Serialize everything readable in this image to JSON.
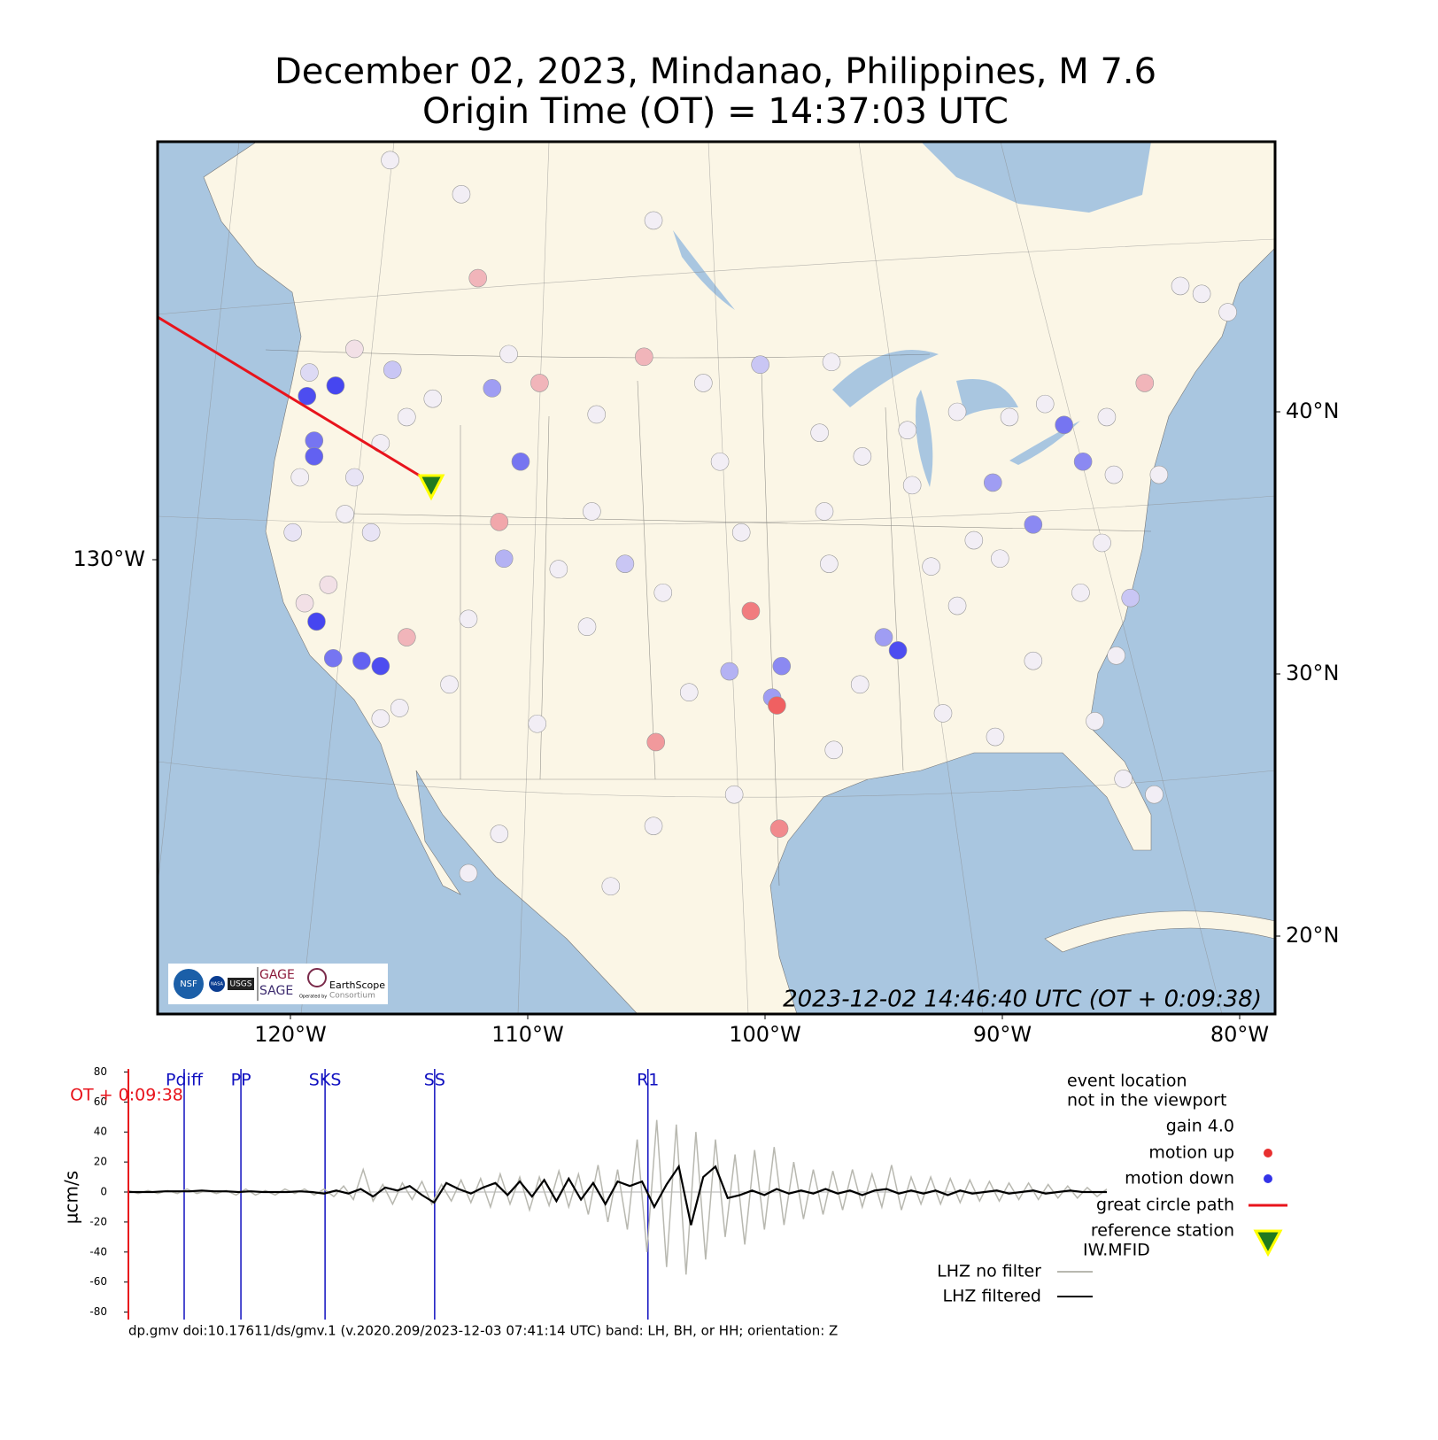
{
  "title": "December 02, 2023, Mindanao, Philippines, M 7.6",
  "subtitle": "Origin Time (OT) = 14:37:03 UTC",
  "map": {
    "lon_ticks": [
      {
        "value": -120,
        "label": "120°W"
      },
      {
        "value": -110,
        "label": "110°W"
      },
      {
        "value": -100,
        "label": "100°W"
      },
      {
        "value": -90,
        "label": "90°W"
      },
      {
        "value": -80,
        "label": "80°W"
      }
    ],
    "lat_ticks": [
      {
        "value": 40,
        "label": "40°N"
      },
      {
        "value": 30,
        "label": "30°N"
      },
      {
        "value": 20,
        "label": "20°N"
      }
    ],
    "left_tick": {
      "value": -130,
      "label": "130°W"
    },
    "timestamp": "2023-12-02 14:46:40 UTC (OT + 0:09:38)",
    "logos": [
      "NSF",
      "NASA",
      "USGS",
      "GAGE",
      "SAGE",
      "Operated by",
      "EarthScope",
      "Consortium"
    ]
  },
  "stations": {
    "lon": [
      -119.3,
      -118.1,
      -119.0,
      -119.0,
      -118.9,
      -118.2,
      -117.0,
      -116.2,
      -111.5,
      -110.3,
      -87.4,
      -86.6,
      -88.7,
      -94.4,
      -99.3,
      -99.7,
      -100.6,
      -99.5,
      -104.6,
      -99.4,
      -109.5,
      -105.1,
      -84.0,
      -115.1,
      -112.1,
      -111.2,
      -100.2,
      -115.7,
      -84.6,
      -105.9,
      -111.0,
      -95.0,
      -90.4,
      -101.5,
      -115.8,
      -112.8,
      -104.7,
      -110.8,
      -102.6,
      -97.2,
      -107.1,
      -97.7,
      -91.9,
      -85.6,
      -82.5,
      -80.5,
      -101.9,
      -107.3,
      -97.5,
      -93.8,
      -83.4,
      -101.0,
      -91.2,
      -85.8,
      -108.7,
      -97.3,
      -90.1,
      -104.3,
      -91.9,
      -86.7,
      -112.5,
      -107.5,
      -88.7,
      -113.3,
      -103.2,
      -92.5,
      -86.1,
      -109.6,
      -97.1,
      -101.3,
      -83.6,
      -104.7,
      -112.5,
      -106.5,
      -119.9,
      -119.6,
      -118.4,
      -117.7,
      -116.6,
      -116.2,
      -115.4,
      -119.4,
      -117.3,
      -116.2,
      -115.1,
      -119.2,
      -117.3,
      -114.0,
      -81.6,
      -89.7,
      -95.9,
      -88.2,
      -94.0,
      -85.3,
      -93.0,
      -85.2,
      -96.0,
      -90.3,
      -111.2,
      -84.9
    ],
    "lat": [
      40.6,
      41.0,
      38.9,
      38.3,
      32.0,
      30.6,
      30.5,
      30.3,
      40.9,
      38.1,
      39.5,
      38.1,
      35.7,
      30.9,
      30.3,
      29.1,
      32.4,
      28.8,
      27.4,
      24.1,
      41.1,
      42.1,
      41.1,
      31.4,
      45.1,
      35.8,
      41.8,
      41.6,
      32.9,
      34.2,
      34.4,
      31.4,
      37.3,
      30.1,
      49.6,
      48.3,
      47.3,
      42.2,
      41.1,
      41.9,
      39.9,
      39.2,
      40.0,
      39.8,
      44.8,
      43.8,
      38.1,
      36.2,
      36.2,
      37.2,
      37.6,
      35.4,
      35.1,
      35.0,
      34.0,
      34.2,
      34.4,
      33.1,
      32.6,
      33.1,
      32.1,
      31.8,
      30.5,
      29.6,
      29.3,
      28.5,
      28.2,
      28.1,
      27.1,
      25.4,
      25.4,
      24.2,
      22.4,
      21.9,
      35.4,
      37.5,
      33.4,
      36.1,
      35.4,
      28.3,
      28.7,
      32.7,
      37.5,
      38.8,
      39.8,
      41.5,
      42.4,
      40.5,
      44.5,
      39.8,
      38.3,
      40.3,
      39.3,
      37.6,
      34.1,
      30.7,
      29.6,
      27.6,
      23.9,
      26.0
    ],
    "motion": [
      -0.8,
      -0.9,
      -0.6,
      -0.7,
      -0.9,
      -0.6,
      -0.7,
      -0.8,
      -0.4,
      -0.6,
      -0.6,
      -0.5,
      -0.5,
      -0.8,
      -0.5,
      -0.4,
      0.4,
      0.5,
      0.3,
      0.35,
      0.2,
      0.2,
      0.2,
      0.2,
      0.2,
      0.25,
      -0.2,
      -0.2,
      -0.2,
      -0.2,
      -0.3,
      -0.4,
      -0.4,
      -0.3,
      0,
      0,
      0,
      0,
      0,
      0,
      0,
      0,
      0,
      0,
      0,
      0,
      0,
      0,
      0,
      0,
      0,
      0,
      0,
      0,
      0,
      0,
      0,
      0,
      0,
      0,
      0,
      0,
      0,
      0,
      0,
      0,
      0,
      0,
      0,
      0,
      0,
      0,
      0,
      0,
      -0.05,
      0,
      0.05,
      0,
      -0.05,
      0,
      0,
      0.05,
      -0.05,
      0,
      0,
      -0.1,
      0.05,
      0,
      0,
      0,
      0,
      0,
      0,
      0,
      0,
      0,
      0,
      0,
      0,
      0
    ]
  },
  "seismogram": {
    "y_label": "µcm/s",
    "ylim": [
      -85,
      85
    ],
    "yticks": [
      -80,
      -60,
      -40,
      -20,
      0,
      20,
      40,
      60,
      80
    ],
    "xlim": [
      0,
      100
    ],
    "time_marker": {
      "x": 0,
      "label": "OT + 0:09:38"
    },
    "phases": [
      {
        "name": "Pdiff",
        "x": 5.7
      },
      {
        "name": "PP",
        "x": 11.5
      },
      {
        "name": "SKS",
        "x": 20.1
      },
      {
        "name": "SS",
        "x": 31.3
      },
      {
        "name": "R1",
        "x": 53.1
      }
    ],
    "series": [
      {
        "name": "LHZ no filter",
        "color": "#b8b8b0",
        "values": [
          1,
          -1,
          1,
          -1,
          1,
          -1,
          2,
          -1,
          1,
          -1,
          1,
          -2,
          2,
          -2,
          1,
          -2,
          2,
          -1,
          2,
          -2,
          2,
          -3,
          4,
          -5,
          15,
          -6,
          5,
          -8,
          6,
          -5,
          7,
          -8,
          5,
          -6,
          8,
          -7,
          9,
          -10,
          12,
          -8,
          10,
          -12,
          10,
          -9,
          14,
          -10,
          12,
          -15,
          18,
          -20,
          15,
          -25,
          35,
          -40,
          48,
          -50,
          45,
          -55,
          40,
          -45,
          35,
          -30,
          25,
          -35,
          28,
          -25,
          30,
          -22,
          20,
          -18,
          15,
          -15,
          14,
          -12,
          15,
          -10,
          12,
          -10,
          18,
          -12,
          10,
          -8,
          10,
          -8,
          9,
          -7,
          8,
          -6,
          7,
          -6,
          6,
          -5,
          6,
          -5,
          5,
          -4,
          4,
          -4,
          3,
          -3,
          2
        ]
      },
      {
        "name": "LHZ filtered",
        "color": "#000000",
        "values": [
          0,
          0,
          0,
          0.5,
          0.5,
          0.5,
          1,
          0.5,
          0.5,
          0,
          0.5,
          0,
          0,
          0,
          0.5,
          0,
          -1,
          1,
          -1,
          2,
          -3,
          3,
          1,
          4,
          -2,
          -7,
          6,
          2,
          -1,
          3,
          6,
          -2,
          7,
          -3,
          8,
          -6,
          9,
          -5,
          6,
          -8,
          7,
          4,
          7,
          -10,
          5,
          17,
          -22,
          10,
          17,
          -4,
          -2,
          1,
          -2,
          2,
          -1,
          1,
          -1,
          2,
          -1,
          1,
          -2,
          1,
          2,
          -1,
          1,
          -1,
          1,
          -2,
          1,
          -1,
          0,
          1,
          -1,
          0,
          1,
          -1,
          0,
          1,
          0,
          0,
          0
        ]
      }
    ],
    "legend": {
      "event_note": [
        "event location",
        "not in the viewport"
      ],
      "gain": "gain  4.0",
      "motion_up": "motion up",
      "motion_down": "motion down",
      "great_circle": "great circle path",
      "reference": [
        "reference station",
        "IW.MFID"
      ]
    }
  },
  "footer": "dp.gmv doi:10.17611/ds/gmv.1 (v.2020.209/2023-12-03 07:41:14 UTC) band: LH, BH, or HH; orientation: Z"
}
